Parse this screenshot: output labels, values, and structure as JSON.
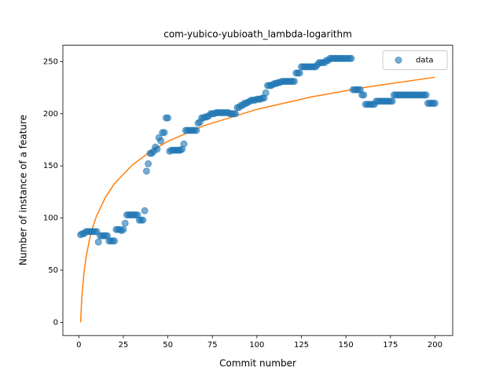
{
  "chart_data": {
    "type": "scatter",
    "title": "com-yubico-yubioath_lambda-logarithm",
    "x_label": "Commit number",
    "y_label": "Number of instance of a feature",
    "legend": "upper right",
    "xlim": [
      -8.95,
      209.95
    ],
    "ylim": [
      -12.65,
      265.65
    ],
    "xticks": [
      0,
      25,
      50,
      75,
      100,
      125,
      150,
      175,
      200
    ],
    "yticks": [
      0,
      50,
      100,
      150,
      200,
      250
    ],
    "series": [
      {
        "name": "data",
        "color": "#1f77b4",
        "x": [
          1,
          2,
          3,
          4,
          5,
          6,
          7,
          8,
          9,
          10,
          11,
          12,
          13,
          14,
          15,
          16,
          17,
          18,
          19,
          20,
          21,
          22,
          23,
          24,
          25,
          26,
          27,
          28,
          29,
          30,
          31,
          32,
          33,
          34,
          35,
          36,
          37,
          38,
          39,
          40,
          41,
          42,
          43,
          44,
          45,
          46,
          47,
          48,
          49,
          50,
          51,
          52,
          53,
          54,
          55,
          56,
          57,
          58,
          59,
          60,
          61,
          62,
          63,
          64,
          65,
          66,
          67,
          68,
          69,
          70,
          71,
          72,
          73,
          74,
          75,
          76,
          77,
          78,
          79,
          80,
          81,
          82,
          83,
          84,
          85,
          86,
          87,
          88,
          89,
          90,
          91,
          92,
          93,
          94,
          95,
          96,
          97,
          98,
          99,
          100,
          101,
          102,
          103,
          104,
          105,
          106,
          107,
          108,
          109,
          110,
          111,
          112,
          113,
          114,
          115,
          116,
          117,
          118,
          119,
          120,
          121,
          122,
          123,
          124,
          125,
          126,
          127,
          128,
          129,
          130,
          131,
          132,
          133,
          134,
          135,
          136,
          137,
          138,
          139,
          140,
          141,
          142,
          143,
          144,
          145,
          146,
          147,
          148,
          149,
          150,
          151,
          152,
          153,
          154,
          155,
          156,
          157,
          158,
          159,
          160,
          161,
          162,
          163,
          164,
          165,
          166,
          167,
          168,
          169,
          170,
          171,
          172,
          173,
          174,
          175,
          176,
          177,
          178,
          179,
          180,
          181,
          182,
          183,
          184,
          185,
          186,
          187,
          188,
          189,
          190,
          191,
          192,
          193,
          194,
          195,
          196,
          197,
          198,
          199,
          200
        ],
        "values": [
          84,
          85,
          85,
          87,
          87,
          87,
          87,
          87,
          87,
          87,
          77,
          83,
          83,
          83,
          83,
          83,
          78,
          78,
          78,
          78,
          89,
          89,
          89,
          88,
          89,
          95,
          103,
          103,
          103,
          103,
          103,
          103,
          103,
          98,
          98,
          98,
          107,
          145,
          152,
          162,
          162,
          164,
          168,
          166,
          177,
          174,
          182,
          182,
          196,
          196,
          164,
          165,
          165,
          165,
          165,
          165,
          165,
          166,
          171,
          184,
          184,
          184,
          184,
          184,
          184,
          184,
          191,
          192,
          196,
          196,
          197,
          197,
          198,
          200,
          200,
          200,
          201,
          201,
          201,
          201,
          201,
          201,
          201,
          201,
          200,
          200,
          200,
          200,
          206,
          206,
          208,
          208,
          210,
          210,
          211,
          212,
          213,
          213,
          213,
          214,
          214,
          214,
          215,
          215,
          220,
          227,
          227,
          227,
          228,
          229,
          229,
          230,
          230,
          231,
          231,
          231,
          231,
          231,
          231,
          231,
          231,
          239,
          239,
          239,
          245,
          245,
          245,
          245,
          245,
          245,
          245,
          245,
          245,
          247,
          249,
          249,
          249,
          249,
          251,
          251,
          253,
          253,
          253,
          253,
          253,
          253,
          253,
          253,
          253,
          253,
          253,
          253,
          253,
          223,
          223,
          223,
          223,
          223,
          218,
          218,
          209,
          209,
          209,
          209,
          209,
          209,
          212,
          212,
          212,
          212,
          212,
          212,
          212,
          212,
          212,
          212,
          218,
          218,
          218,
          218,
          218,
          218,
          218,
          218,
          218,
          218,
          218,
          218,
          218,
          218,
          218,
          218,
          218,
          218,
          218,
          210,
          210,
          210,
          210,
          210
        ]
      }
    ],
    "fit": {
      "color": "#ff7f0e",
      "x": [
        1,
        1.5,
        2,
        3,
        4,
        6,
        8,
        10,
        15,
        20,
        30,
        40,
        50,
        70,
        100,
        130,
        160,
        200
      ],
      "values": [
        0,
        18.0,
        30.7,
        48.7,
        61.5,
        79.5,
        92.2,
        102.1,
        120.1,
        132.9,
        150.8,
        163.6,
        173.5,
        188.4,
        204.2,
        215.9,
        225.1,
        235.0
      ]
    }
  }
}
